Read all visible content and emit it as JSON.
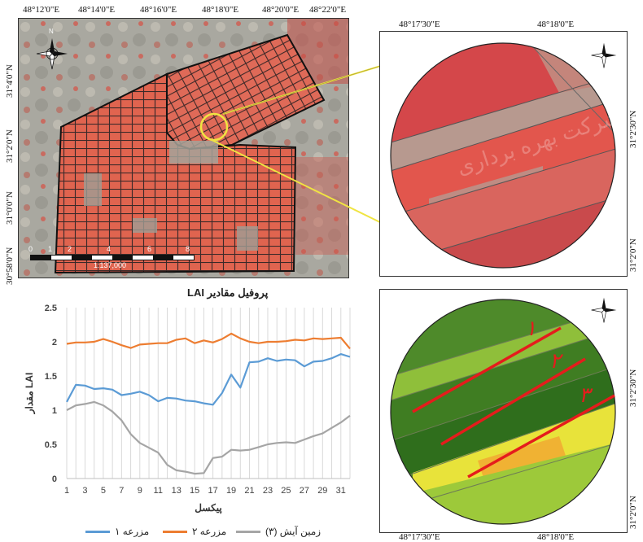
{
  "map_main": {
    "lon_ticks": [
      "48°12'0\"E",
      "48°14'0\"E",
      "48°16'0\"E",
      "48°18'0\"E",
      "48°20'0\"E",
      "48°22'0\"E"
    ],
    "lat_ticks": [
      "31°4'0\"N",
      "31°2'0\"N",
      "31°0'0\"N",
      "30°58'0\"N"
    ],
    "scale_text": "1:137,000",
    "scale_labels": [
      "0",
      "1",
      "2",
      "4",
      "6",
      "8"
    ],
    "north_label": "N"
  },
  "zoom_top": {
    "lon_ticks": [
      "48°17'30\"E",
      "48°18'0\"E"
    ],
    "lat_ticks": [
      "31°2'30\"N",
      "31°2'0\"N"
    ],
    "watermark": "شرکت بهره برداری"
  },
  "zoom_bottom": {
    "lon_ticks": [
      "48°17'30\"E",
      "48°18'0\"E"
    ],
    "lat_ticks": [
      "31°2'30\"N",
      "31°2'0\"N"
    ],
    "field_labels": [
      "۱",
      "۲",
      "۳"
    ]
  },
  "chart_data": {
    "type": "line",
    "title": "پروفیل مقادیر LAI",
    "xlabel": "پیکسل",
    "ylabel": "مقدار LAI",
    "x": [
      1,
      2,
      3,
      4,
      5,
      6,
      7,
      8,
      9,
      10,
      11,
      12,
      13,
      14,
      15,
      16,
      17,
      18,
      19,
      20,
      21,
      22,
      23,
      24,
      25,
      26,
      27,
      28,
      29,
      30,
      31,
      32
    ],
    "x_ticks": [
      "1",
      "3",
      "5",
      "7",
      "9",
      "11",
      "13",
      "15",
      "17",
      "19",
      "21",
      "23",
      "25",
      "27",
      "29",
      "31"
    ],
    "y_ticks": [
      "0",
      "0.5",
      "1",
      "1.5",
      "2",
      "2.5"
    ],
    "ylim": [
      0,
      2.5
    ],
    "grid": "vertical",
    "legend_position": "bottom",
    "series": [
      {
        "name": "مزرعه ۱",
        "color": "#5b9bd5",
        "values": [
          1.12,
          1.37,
          1.36,
          1.31,
          1.32,
          1.3,
          1.22,
          1.24,
          1.27,
          1.22,
          1.13,
          1.18,
          1.17,
          1.14,
          1.13,
          1.1,
          1.08,
          1.25,
          1.52,
          1.33,
          1.7,
          1.71,
          1.76,
          1.72,
          1.74,
          1.73,
          1.64,
          1.71,
          1.72,
          1.76,
          1.82,
          1.78
        ]
      },
      {
        "name": "مزرعه ۲",
        "color": "#ed7d31",
        "values": [
          1.97,
          1.99,
          1.99,
          2.0,
          2.04,
          2.0,
          1.95,
          1.91,
          1.96,
          1.97,
          1.98,
          1.98,
          2.03,
          2.05,
          1.98,
          2.02,
          1.99,
          2.04,
          2.12,
          2.05,
          2.0,
          1.98,
          2.0,
          2.0,
          2.01,
          2.03,
          2.02,
          2.05,
          2.04,
          2.05,
          2.06,
          1.9
        ]
      },
      {
        "name": "زمین آیش (۳)",
        "color": "#a5a5a5",
        "values": [
          1.0,
          1.07,
          1.09,
          1.12,
          1.07,
          0.98,
          0.85,
          0.65,
          0.52,
          0.45,
          0.38,
          0.2,
          0.12,
          0.1,
          0.07,
          0.08,
          0.3,
          0.32,
          0.42,
          0.41,
          0.42,
          0.46,
          0.5,
          0.52,
          0.53,
          0.52,
          0.57,
          0.62,
          0.66,
          0.74,
          0.82,
          0.92
        ]
      }
    ]
  }
}
